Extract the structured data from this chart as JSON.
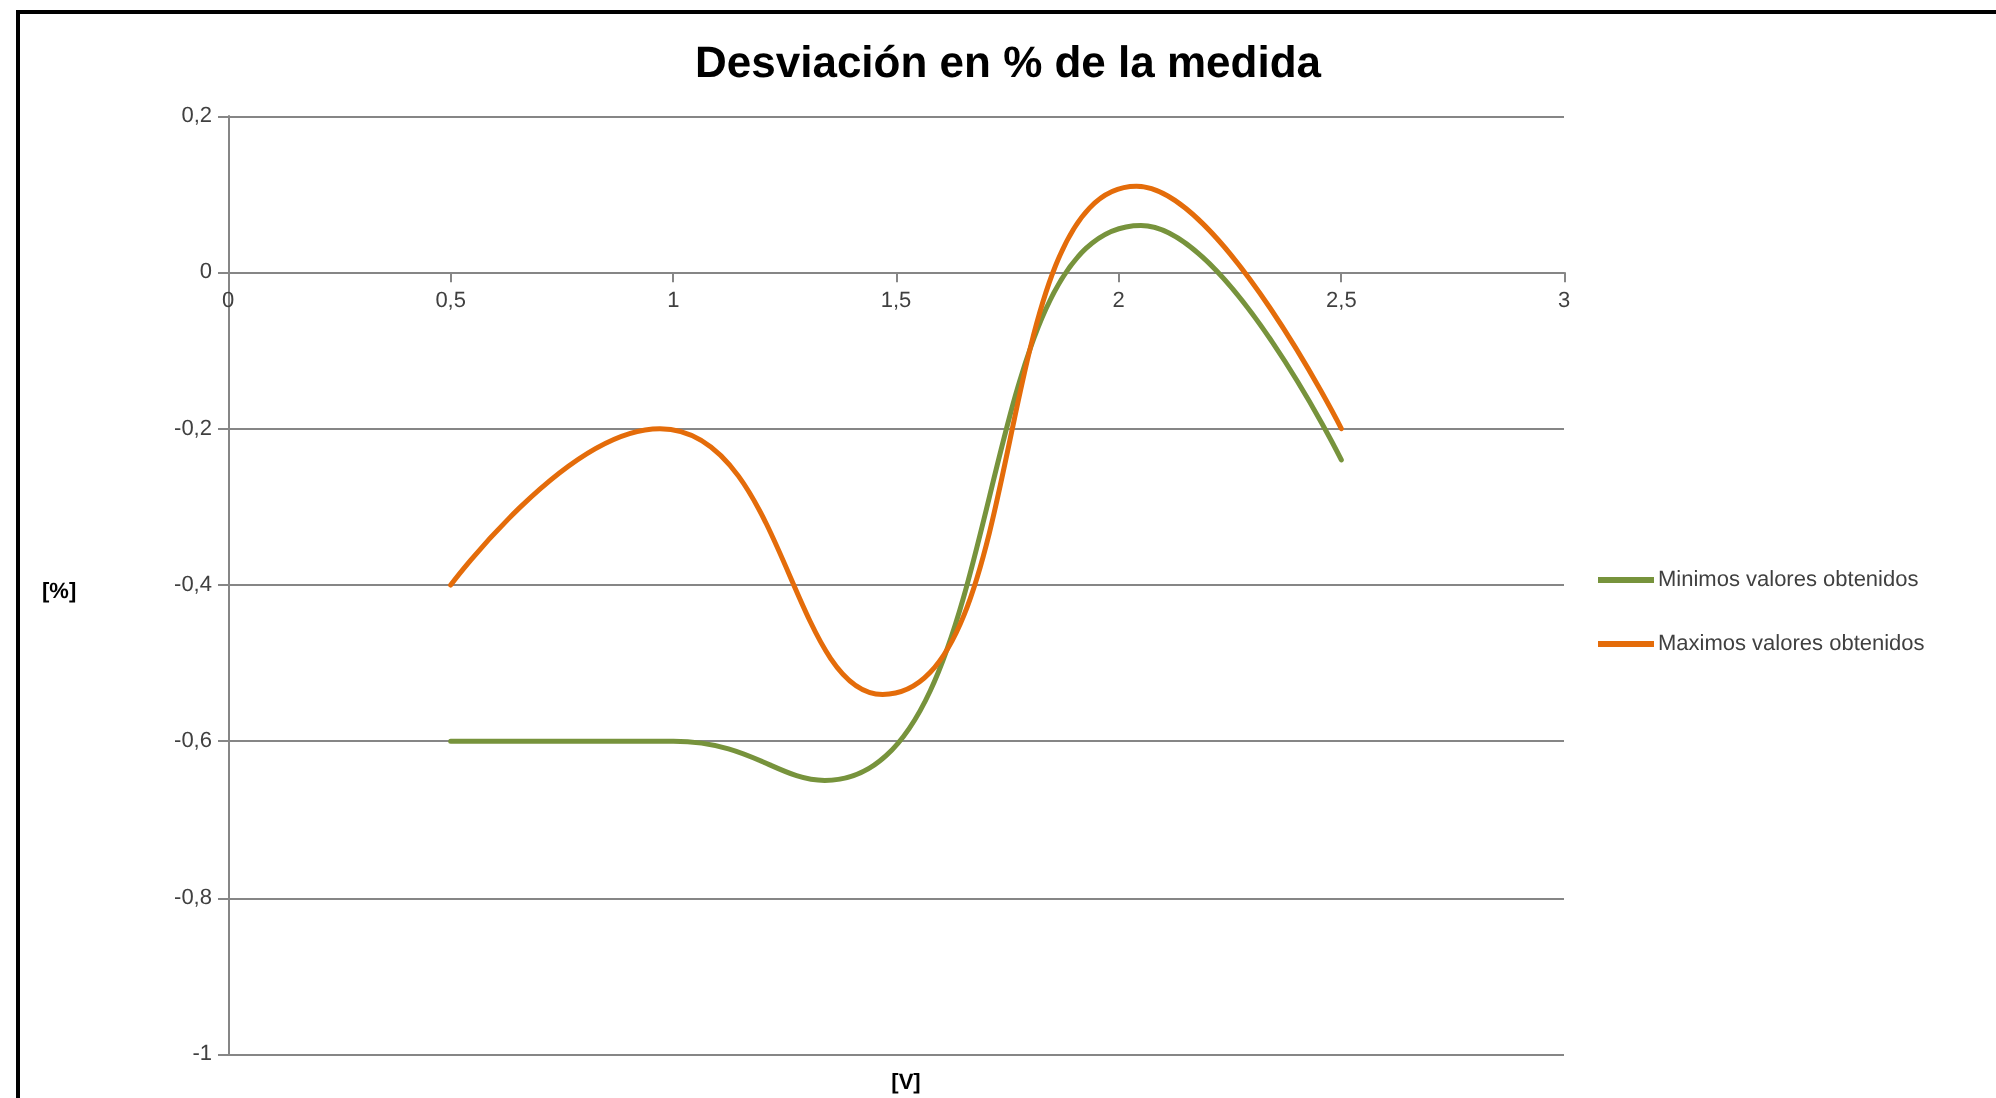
{
  "chart_data": {
    "type": "line",
    "title": "Desviación en % de la medida",
    "xlabel": "[V]",
    "ylabel": "[%]",
    "series": [
      {
        "name": "Minimos valores obtenidos",
        "color": "#77933c",
        "x": [
          0.5,
          1.0,
          1.34,
          2.05,
          2.5
        ],
        "values": [
          -0.6,
          -0.6,
          -0.65,
          0.06,
          -0.24
        ]
      },
      {
        "name": "Maximos valores obtenidos",
        "color": "#e46c0a",
        "x": [
          0.5,
          0.97,
          1.47,
          2.04,
          2.5
        ],
        "values": [
          -0.4,
          -0.2,
          -0.54,
          0.11,
          -0.2
        ]
      }
    ],
    "xlim": [
      0,
      3
    ],
    "xticks": [
      0,
      {
        "value": 0.5,
        "label": "0,5"
      },
      1,
      {
        "value": 1.5,
        "label": "1,5"
      },
      2,
      {
        "value": 2.5,
        "label": "2,5"
      },
      3
    ],
    "ylim": [
      -1,
      0.2
    ],
    "yticks": [
      -1,
      {
        "value": -0.8,
        "label": "-0,8"
      },
      {
        "value": -0.6,
        "label": "-0,6"
      },
      {
        "value": -0.4,
        "label": "-0,4"
      },
      {
        "value": -0.2,
        "label": "-0,2"
      },
      0,
      {
        "value": 0.2,
        "label": "0,2"
      }
    ],
    "grid": "y",
    "legend": "right",
    "marker": "none"
  }
}
